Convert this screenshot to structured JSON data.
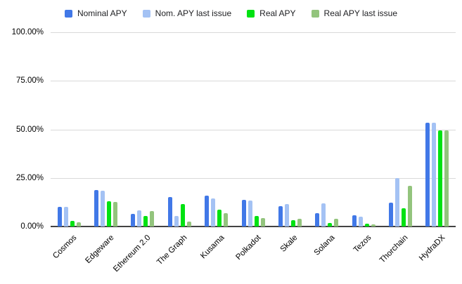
{
  "chart_data": {
    "type": "bar",
    "title": "",
    "xlabel": "",
    "ylabel": "",
    "categories": [
      "Cosmos",
      "Edgeware",
      "Ethereum 2.0",
      "The Graph",
      "Kusama",
      "Polkadot",
      "Skale",
      "Solana",
      "Tezos",
      "Thorchain",
      "HydraDX"
    ],
    "series": [
      {
        "name": "Nominal APY",
        "color": "#4178e7",
        "values": [
          10.0,
          18.6,
          6.4,
          15.2,
          15.8,
          13.7,
          10.5,
          6.8,
          5.8,
          12.2,
          53.3
        ]
      },
      {
        "name": "Nom. APY last issue",
        "color": "#a4c2f4",
        "values": [
          10.0,
          18.3,
          8.4,
          5.5,
          14.6,
          13.3,
          11.7,
          11.8,
          5.2,
          25.0,
          53.3
        ]
      },
      {
        "name": "Real APY",
        "color": "#00e212",
        "values": [
          2.9,
          13.1,
          5.6,
          11.6,
          8.5,
          5.3,
          3.1,
          1.8,
          1.6,
          9.4,
          49.5
        ]
      },
      {
        "name": "Real APY last issue",
        "color": "#93c47d",
        "values": [
          2.3,
          12.8,
          7.9,
          2.7,
          6.9,
          4.3,
          3.8,
          3.9,
          1.1,
          20.8,
          49.3
        ]
      }
    ],
    "y_ticks": [
      "0.00%",
      "25.00%",
      "50.00%",
      "75.00%",
      "100.00%"
    ],
    "ylim": [
      0,
      100
    ],
    "grid": true,
    "legend_position": "top"
  },
  "colors": {
    "background": "#ffffff",
    "gridline": "#d9d9d9",
    "axis_line": "#424242",
    "label_text": "#000000"
  }
}
